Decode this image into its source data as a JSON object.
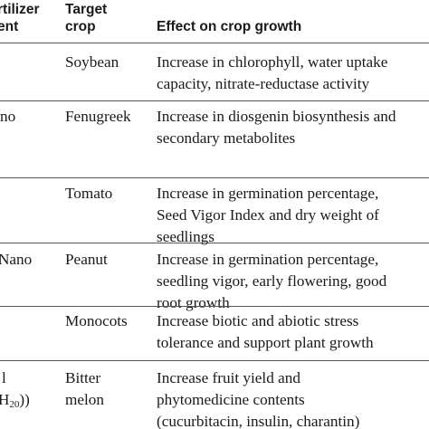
{
  "table": {
    "headers": {
      "agent": [
        "rtilizer",
        "ent"
      ],
      "crop": [
        "Target",
        "crop"
      ],
      "effect": [
        "Effect on crop growth"
      ]
    },
    "rows": [
      {
        "agent": [],
        "crop": [
          "Soybean"
        ],
        "effect": [
          "Increase in chlorophyll, water uptake",
          "capacity, nitrate-reductase activity"
        ]
      },
      {
        "agent": [
          "no"
        ],
        "crop": [
          "Fenugreek"
        ],
        "effect": [
          "Increase in diosgenin biosynthesis and",
          "secondary metabolites"
        ]
      },
      {
        "agent": [],
        "crop": [
          "Tomato"
        ],
        "effect": [
          "Increase in germination percentage,",
          "Seed Vigor Index and dry weight of",
          "seedlings"
        ]
      },
      {
        "agent": [
          "Nano"
        ],
        "crop": [
          "Peanut"
        ],
        "effect": [
          "Increase in germination percentage,",
          "seedling vigor, early flowering, good",
          "root growth"
        ]
      },
      {
        "agent": [],
        "crop": [
          "Monocots"
        ],
        "effect": [
          "Increase biotic and abiotic stress",
          "tolerance and support plant growth"
        ]
      },
      {
        "agent": [
          "l",
          "H",
          "20",
          "))"
        ],
        "crop": [
          "Bitter",
          "melon"
        ],
        "effect": [
          "Increase fruit yield and",
          "phytomedicine contents",
          "(cucurbitacin, insulin, charantin)"
        ]
      }
    ]
  }
}
